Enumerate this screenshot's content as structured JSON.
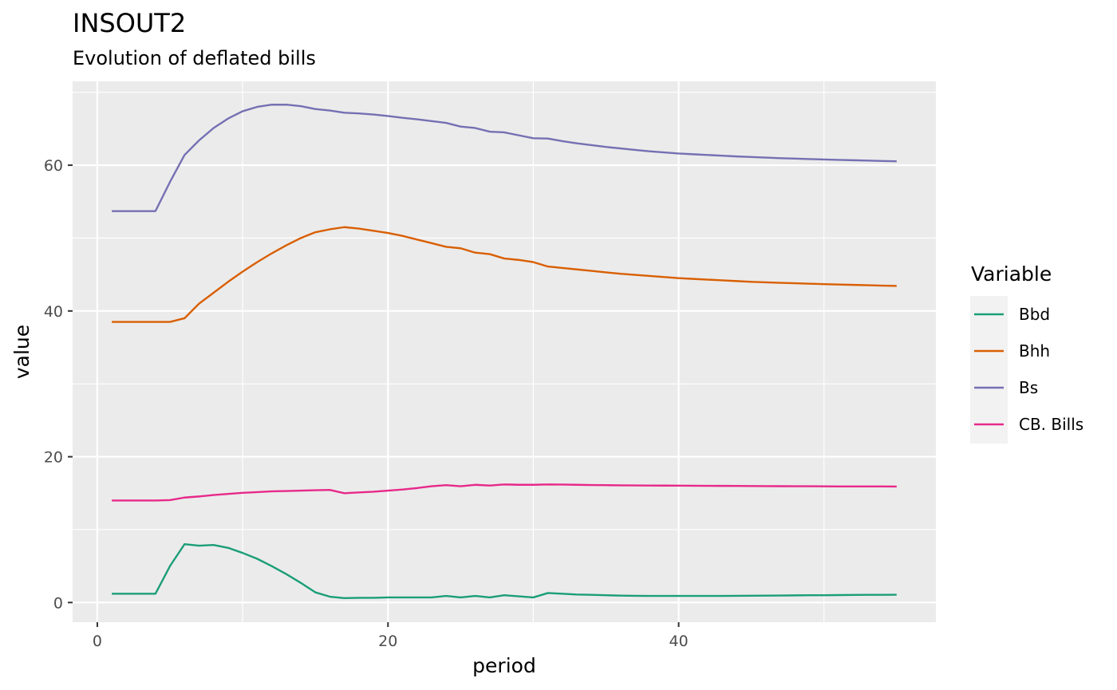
{
  "chart_data": {
    "type": "line",
    "title": "INSOUT2",
    "subtitle": "Evolution of deflated bills",
    "xlabel": "period",
    "ylabel": "value",
    "xlim": [
      -1.7,
      57.7
    ],
    "ylim": [
      -2.7,
      71.5
    ],
    "x_ticks": [
      0,
      20,
      40
    ],
    "y_ticks": [
      0,
      20,
      40,
      60
    ],
    "grid": true,
    "legend_title": "Variable",
    "legend_position": "right",
    "series": [
      {
        "name": "Bbd",
        "color": "#1B9E77",
        "values": [
          [
            1,
            1.2
          ],
          [
            2,
            1.2
          ],
          [
            3,
            1.2
          ],
          [
            4,
            1.2
          ],
          [
            5,
            5.0
          ],
          [
            6,
            8.0
          ],
          [
            7,
            7.8
          ],
          [
            8,
            7.9
          ],
          [
            9,
            7.5
          ],
          [
            10,
            6.8
          ],
          [
            11,
            6.0
          ],
          [
            12,
            5.0
          ],
          [
            13,
            3.9
          ],
          [
            14,
            2.7
          ],
          [
            15,
            1.4
          ],
          [
            16,
            0.8
          ],
          [
            17,
            0.6
          ],
          [
            18,
            0.65
          ],
          [
            19,
            0.65
          ],
          [
            20,
            0.7
          ],
          [
            21,
            0.7
          ],
          [
            22,
            0.7
          ],
          [
            23,
            0.7
          ],
          [
            24,
            0.9
          ],
          [
            25,
            0.7
          ],
          [
            26,
            0.9
          ],
          [
            27,
            0.7
          ],
          [
            28,
            1.0
          ],
          [
            29,
            0.85
          ],
          [
            30,
            0.7
          ],
          [
            31,
            1.3
          ],
          [
            32,
            1.2
          ],
          [
            33,
            1.1
          ],
          [
            34,
            1.05
          ],
          [
            35,
            1.0
          ],
          [
            36,
            0.95
          ],
          [
            37,
            0.92
          ],
          [
            38,
            0.9
          ],
          [
            39,
            0.9
          ],
          [
            40,
            0.9
          ],
          [
            41,
            0.9
          ],
          [
            42,
            0.9
          ],
          [
            43,
            0.9
          ],
          [
            44,
            0.92
          ],
          [
            45,
            0.93
          ],
          [
            46,
            0.95
          ],
          [
            47,
            0.96
          ],
          [
            48,
            0.98
          ],
          [
            49,
            1.0
          ],
          [
            50,
            1.0
          ],
          [
            51,
            1.02
          ],
          [
            52,
            1.04
          ],
          [
            53,
            1.05
          ],
          [
            54,
            1.06
          ],
          [
            55,
            1.07
          ]
        ]
      },
      {
        "name": "Bhh",
        "color": "#D95F02",
        "values": [
          [
            1,
            38.5
          ],
          [
            2,
            38.5
          ],
          [
            3,
            38.5
          ],
          [
            4,
            38.5
          ],
          [
            5,
            38.5
          ],
          [
            6,
            39.0
          ],
          [
            7,
            41.0
          ],
          [
            8,
            42.5
          ],
          [
            9,
            44.0
          ],
          [
            10,
            45.4
          ],
          [
            11,
            46.7
          ],
          [
            12,
            47.9
          ],
          [
            13,
            49.0
          ],
          [
            14,
            50.0
          ],
          [
            15,
            50.8
          ],
          [
            16,
            51.2
          ],
          [
            17,
            51.5
          ],
          [
            18,
            51.3
          ],
          [
            19,
            51.0
          ],
          [
            20,
            50.7
          ],
          [
            21,
            50.3
          ],
          [
            22,
            49.8
          ],
          [
            23,
            49.3
          ],
          [
            24,
            48.8
          ],
          [
            25,
            48.6
          ],
          [
            26,
            48.0
          ],
          [
            27,
            47.8
          ],
          [
            28,
            47.2
          ],
          [
            29,
            47.0
          ],
          [
            30,
            46.7
          ],
          [
            31,
            46.1
          ],
          [
            32,
            45.9
          ],
          [
            33,
            45.7
          ],
          [
            34,
            45.5
          ],
          [
            35,
            45.3
          ],
          [
            36,
            45.1
          ],
          [
            37,
            44.95
          ],
          [
            38,
            44.8
          ],
          [
            39,
            44.65
          ],
          [
            40,
            44.5
          ],
          [
            41,
            44.4
          ],
          [
            42,
            44.3
          ],
          [
            43,
            44.2
          ],
          [
            44,
            44.1
          ],
          [
            45,
            44.0
          ],
          [
            46,
            43.93
          ],
          [
            47,
            43.86
          ],
          [
            48,
            43.8
          ],
          [
            49,
            43.74
          ],
          [
            50,
            43.68
          ],
          [
            51,
            43.63
          ],
          [
            52,
            43.58
          ],
          [
            53,
            43.53
          ],
          [
            54,
            43.48
          ],
          [
            55,
            43.44
          ]
        ]
      },
      {
        "name": "Bs",
        "color": "#7570B3",
        "values": [
          [
            1,
            53.7
          ],
          [
            2,
            53.7
          ],
          [
            3,
            53.7
          ],
          [
            4,
            53.7
          ],
          [
            5,
            57.7
          ],
          [
            6,
            61.4
          ],
          [
            7,
            63.4
          ],
          [
            8,
            65.1
          ],
          [
            9,
            66.4
          ],
          [
            10,
            67.4
          ],
          [
            11,
            68.0
          ],
          [
            12,
            68.3
          ],
          [
            13,
            68.3
          ],
          [
            14,
            68.1
          ],
          [
            15,
            67.7
          ],
          [
            16,
            67.5
          ],
          [
            17,
            67.2
          ],
          [
            18,
            67.1
          ],
          [
            19,
            66.95
          ],
          [
            20,
            66.75
          ],
          [
            21,
            66.5
          ],
          [
            22,
            66.3
          ],
          [
            23,
            66.05
          ],
          [
            24,
            65.8
          ],
          [
            25,
            65.3
          ],
          [
            26,
            65.1
          ],
          [
            27,
            64.6
          ],
          [
            28,
            64.5
          ],
          [
            29,
            64.1
          ],
          [
            30,
            63.7
          ],
          [
            31,
            63.65
          ],
          [
            32,
            63.3
          ],
          [
            33,
            63.0
          ],
          [
            34,
            62.75
          ],
          [
            35,
            62.5
          ],
          [
            36,
            62.3
          ],
          [
            37,
            62.1
          ],
          [
            38,
            61.9
          ],
          [
            39,
            61.75
          ],
          [
            40,
            61.6
          ],
          [
            41,
            61.5
          ],
          [
            42,
            61.4
          ],
          [
            43,
            61.3
          ],
          [
            44,
            61.2
          ],
          [
            45,
            61.12
          ],
          [
            46,
            61.04
          ],
          [
            47,
            60.96
          ],
          [
            48,
            60.9
          ],
          [
            49,
            60.84
          ],
          [
            50,
            60.78
          ],
          [
            51,
            60.73
          ],
          [
            52,
            60.68
          ],
          [
            53,
            60.63
          ],
          [
            54,
            60.58
          ],
          [
            55,
            60.54
          ]
        ]
      },
      {
        "name": "CB. Bills",
        "color": "#E7298A",
        "values": [
          [
            1,
            14.0
          ],
          [
            2,
            14.0
          ],
          [
            3,
            14.0
          ],
          [
            4,
            14.0
          ],
          [
            5,
            14.05
          ],
          [
            6,
            14.4
          ],
          [
            7,
            14.55
          ],
          [
            8,
            14.75
          ],
          [
            9,
            14.9
          ],
          [
            10,
            15.05
          ],
          [
            11,
            15.15
          ],
          [
            12,
            15.25
          ],
          [
            13,
            15.3
          ],
          [
            14,
            15.35
          ],
          [
            15,
            15.4
          ],
          [
            16,
            15.45
          ],
          [
            17,
            15.0
          ],
          [
            18,
            15.1
          ],
          [
            19,
            15.2
          ],
          [
            20,
            15.35
          ],
          [
            21,
            15.5
          ],
          [
            22,
            15.7
          ],
          [
            23,
            15.95
          ],
          [
            24,
            16.1
          ],
          [
            25,
            15.95
          ],
          [
            26,
            16.15
          ],
          [
            27,
            16.05
          ],
          [
            28,
            16.2
          ],
          [
            29,
            16.15
          ],
          [
            30,
            16.15
          ],
          [
            31,
            16.2
          ],
          [
            32,
            16.18
          ],
          [
            33,
            16.15
          ],
          [
            34,
            16.12
          ],
          [
            35,
            16.1
          ],
          [
            36,
            16.08
          ],
          [
            37,
            16.06
          ],
          [
            38,
            16.05
          ],
          [
            39,
            16.04
          ],
          [
            40,
            16.03
          ],
          [
            41,
            16.02
          ],
          [
            42,
            16.01
          ],
          [
            43,
            16.0
          ],
          [
            44,
            15.99
          ],
          [
            45,
            15.98
          ],
          [
            46,
            15.97
          ],
          [
            47,
            15.96
          ],
          [
            48,
            15.95
          ],
          [
            49,
            15.95
          ],
          [
            50,
            15.94
          ],
          [
            51,
            15.93
          ],
          [
            52,
            15.93
          ],
          [
            53,
            15.92
          ],
          [
            54,
            15.92
          ],
          [
            55,
            15.91
          ]
        ]
      }
    ]
  }
}
